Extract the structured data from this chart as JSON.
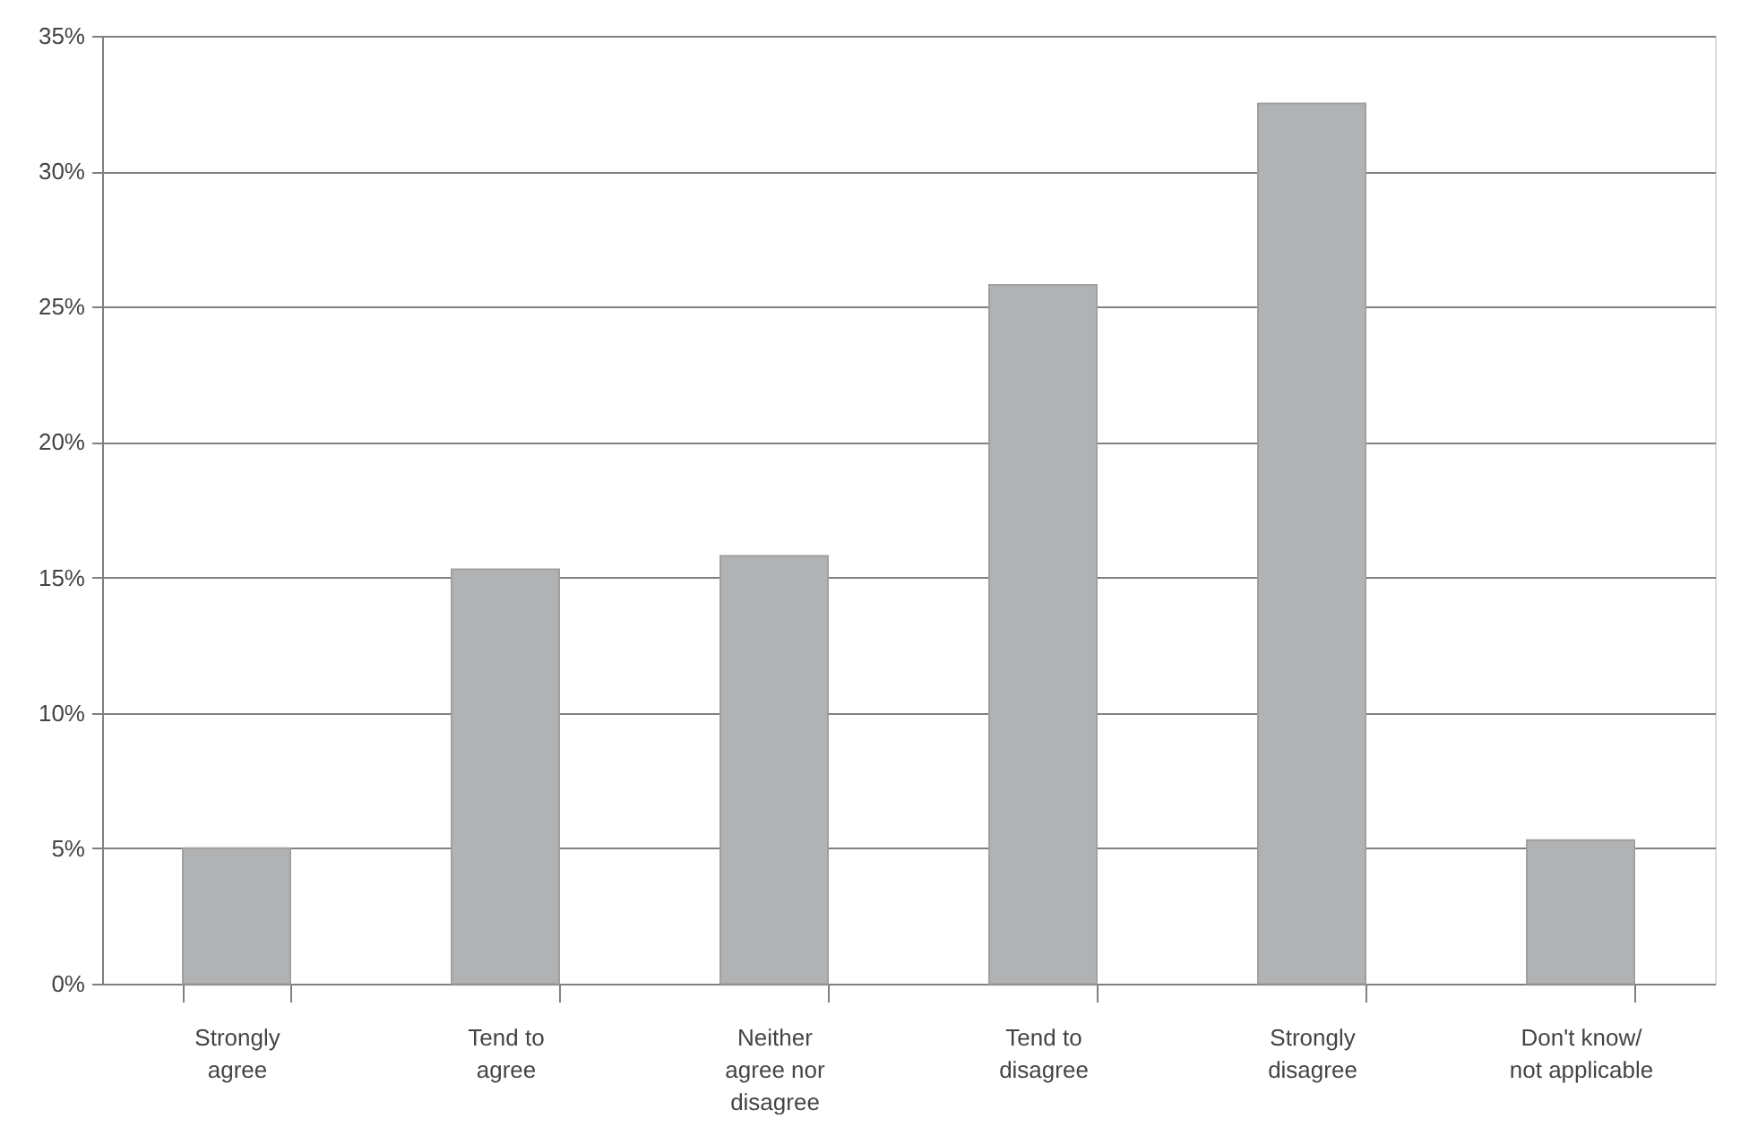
{
  "chart_data": {
    "type": "bar",
    "categories": [
      "Strongly\nagree",
      "Tend to\nagree",
      "Neither\nagree nor\ndisagree",
      "Tend to\ndisagree",
      "Strongly\ndisagree",
      "Don't know/\nnot applicable"
    ],
    "values": [
      5.0,
      15.3,
      15.8,
      25.8,
      32.5,
      5.3
    ],
    "color": "#b1b2b4",
    "ylim": [
      0,
      35
    ],
    "yticks": [
      {
        "value": 0,
        "label": "0%"
      },
      {
        "value": 5,
        "label": "5%"
      },
      {
        "value": 10,
        "label": "10%"
      },
      {
        "value": 15,
        "label": "15%"
      },
      {
        "value": 20,
        "label": "20%"
      },
      {
        "value": 25,
        "label": "25%"
      },
      {
        "value": 30,
        "label": "30%"
      },
      {
        "value": 35,
        "label": "35%"
      }
    ],
    "grid": "y"
  }
}
